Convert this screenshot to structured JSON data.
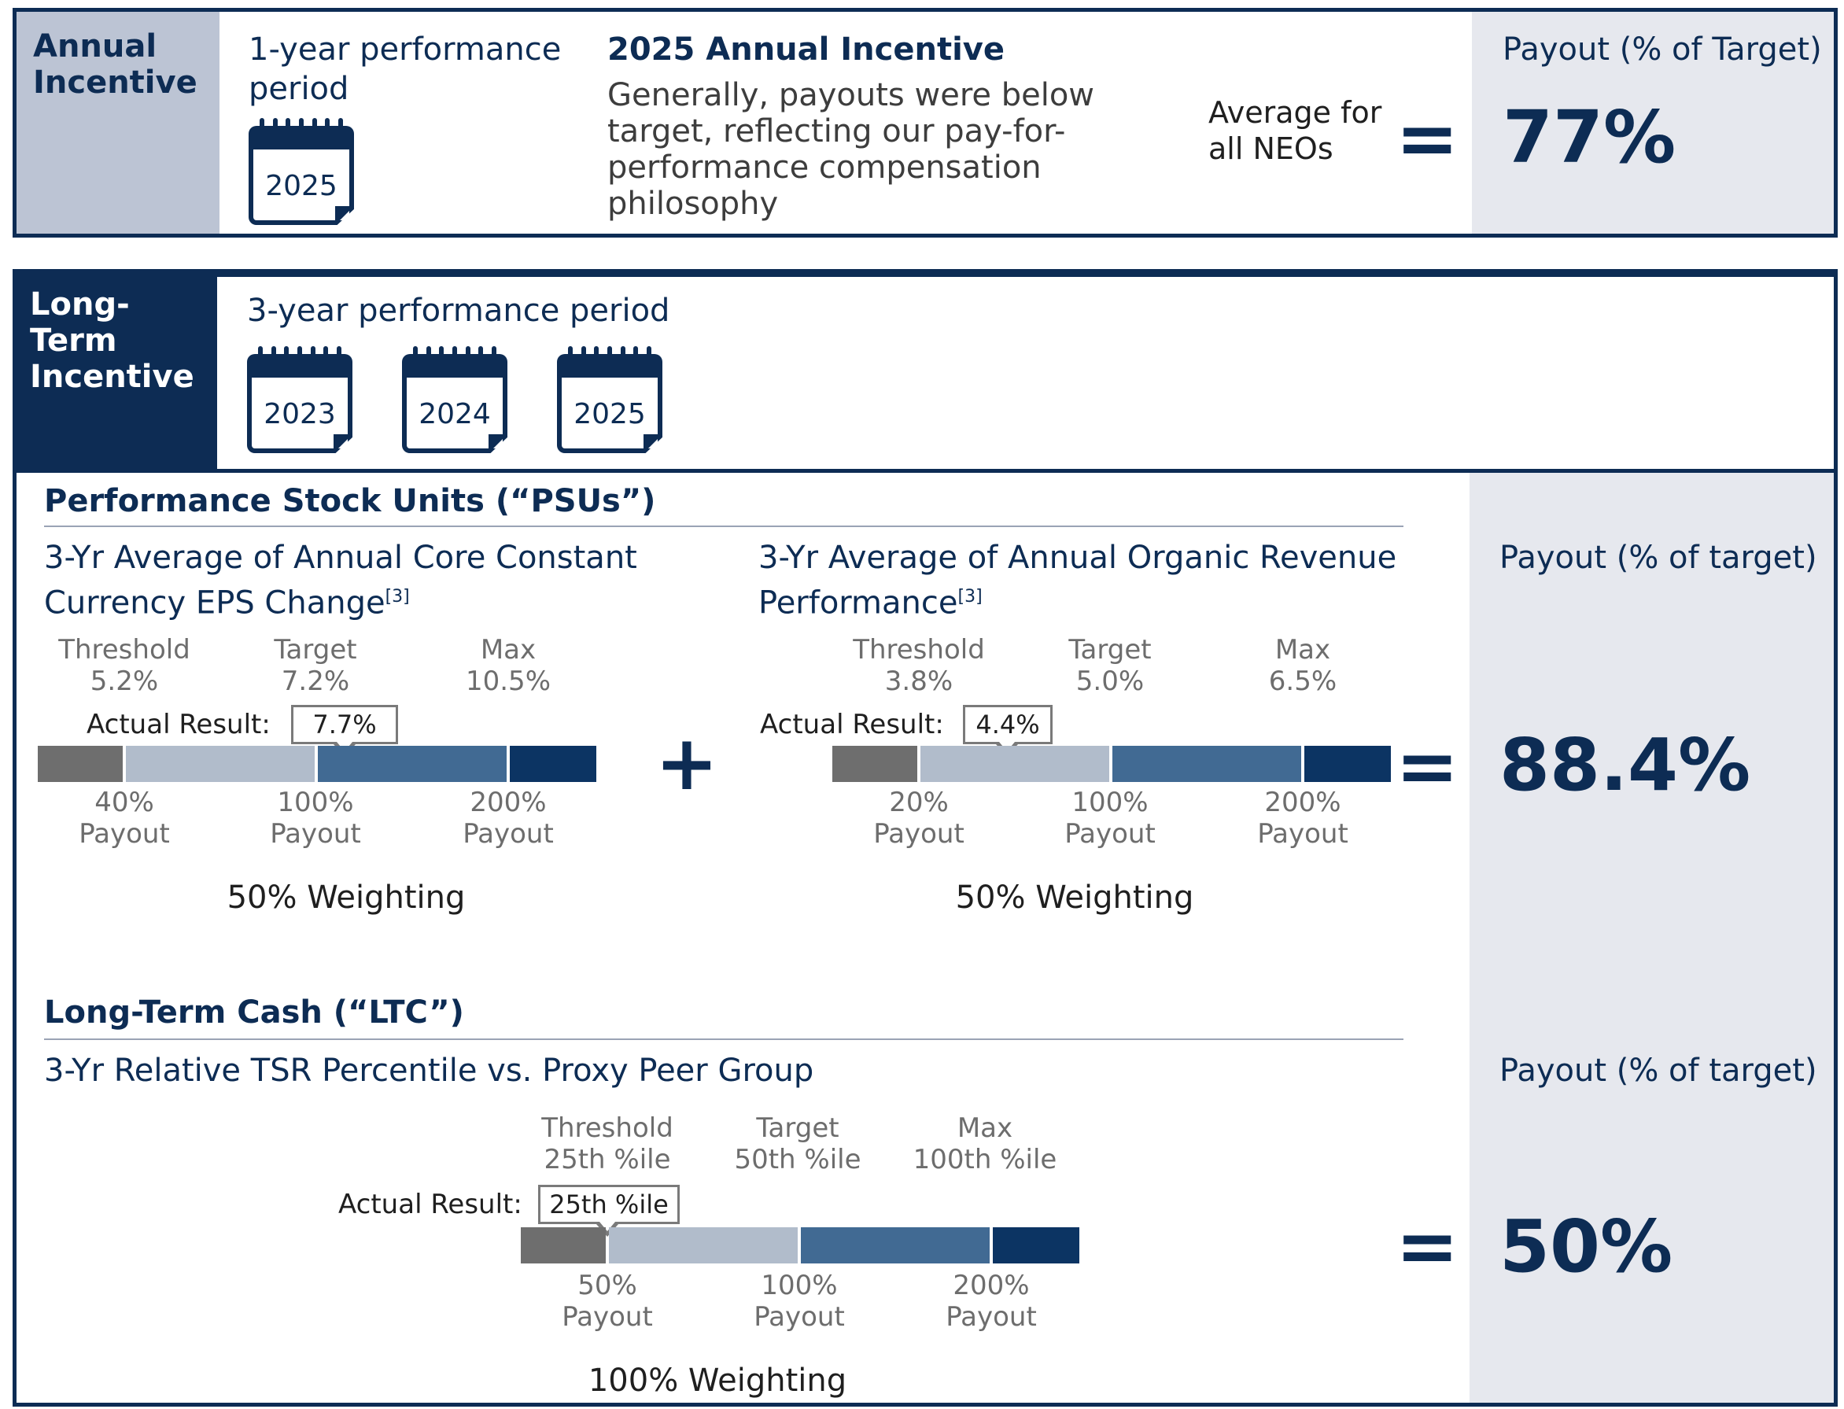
{
  "annual": {
    "label": "Annual Incentive",
    "period_label": "1-year performance period",
    "calendar_year": "2025",
    "title": "2025 Annual Incentive",
    "description": "Generally, payouts were below target, reflecting our pay-for-performance compensation philosophy",
    "avg_label": "Average for all NEOs",
    "equals": "=",
    "payout_header": "Payout (% of Target)",
    "payout_value": "77%"
  },
  "long_term": {
    "label": "Long-Term Incentive",
    "period_label": "3-year performance period",
    "years": [
      "2023",
      "2024",
      "2025"
    ]
  },
  "psu": {
    "title": "Performance Stock Units (“PSUs”)",
    "plus": "+",
    "equals": "=",
    "payout_header": "Payout (% of target)",
    "payout_value": "88.4%",
    "metrics": [
      {
        "title": "3-Yr Average of Annual Core Constant Currency EPS Change",
        "footnote": "[3]",
        "levels": [
          {
            "name": "Threshold",
            "value": "5.2%"
          },
          {
            "name": "Target",
            "value": "7.2%"
          },
          {
            "name": "Max",
            "value": "10.5%"
          }
        ],
        "actual_label": "Actual Result:",
        "actual_value": "7.7%",
        "payouts": [
          {
            "pct": "40%",
            "label": "Payout"
          },
          {
            "pct": "100%",
            "label": "Payout"
          },
          {
            "pct": "200%",
            "label": "Payout"
          }
        ],
        "weighting": "50% Weighting"
      },
      {
        "title": "3-Yr Average of Annual Organic Revenue Performance",
        "footnote": "[3]",
        "levels": [
          {
            "name": "Threshold",
            "value": "3.8%"
          },
          {
            "name": "Target",
            "value": "5.0%"
          },
          {
            "name": "Max",
            "value": "6.5%"
          }
        ],
        "actual_label": "Actual Result:",
        "actual_value": "4.4%",
        "payouts": [
          {
            "pct": "20%",
            "label": "Payout"
          },
          {
            "pct": "100%",
            "label": "Payout"
          },
          {
            "pct": "200%",
            "label": "Payout"
          }
        ],
        "weighting": "50% Weighting"
      }
    ]
  },
  "ltc": {
    "title": "Long-Term Cash (“LTC”)",
    "metric_title": "3-Yr Relative TSR Percentile vs. Proxy Peer Group",
    "levels": [
      {
        "name": "Threshold",
        "value": "25th %ile"
      },
      {
        "name": "Target",
        "value": "50th %ile"
      },
      {
        "name": "Max",
        "value": "100th %ile"
      }
    ],
    "actual_label": "Actual Result:",
    "actual_value": "25th %ile",
    "payouts": [
      {
        "pct": "50%",
        "label": "Payout"
      },
      {
        "pct": "100%",
        "label": "Payout"
      },
      {
        "pct": "200%",
        "label": "Payout"
      }
    ],
    "weighting": "100% Weighting",
    "equals": "=",
    "payout_header": "Payout (% of target)",
    "payout_value": "50%"
  }
}
